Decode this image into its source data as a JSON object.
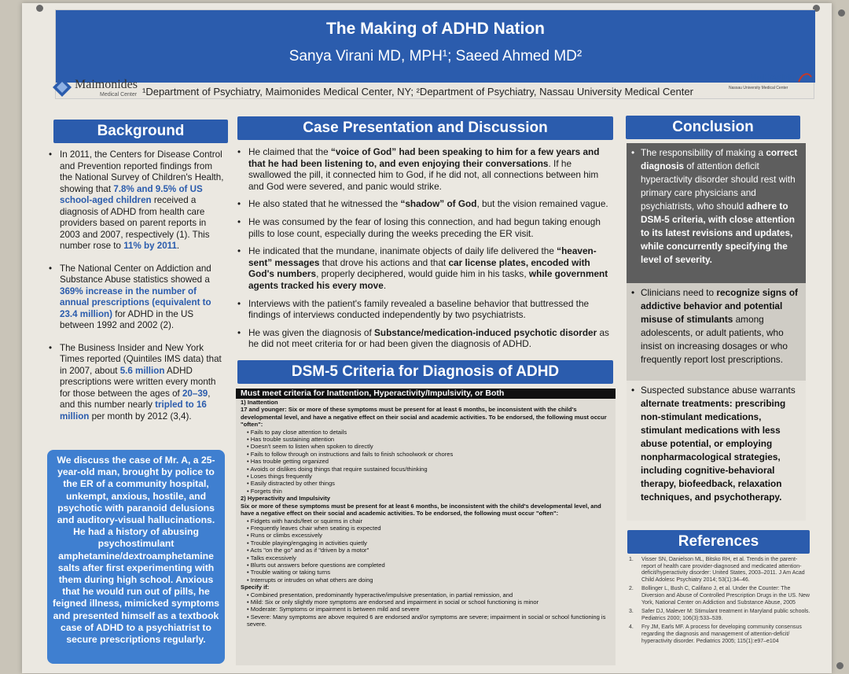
{
  "poster": {
    "title": "The Making of ADHD Nation",
    "authors": "Sanya Virani MD, MPH¹; Saeed Ahmed MD²",
    "departments": "¹Department of Psychiatry, Maimonides Medical Center, NY; ²Department of Psychiatry, Nassau University Medical Center",
    "logo_left": "Maimonides",
    "logo_left_sub": "Medical Center",
    "logo_right": "NuHealth",
    "logo_right_sub": "Nassau University Medical Center"
  },
  "background": {
    "heading": "Background",
    "p1_a": "In 2011, the Centers for Disease Control and Prevention reported findings from the National Survey of Children's Health, showing that ",
    "p1_b": "7.8% and 9.5% of US school-aged children",
    "p1_c": " received a diagnosis of ADHD from health care providers based on parent reports in 2003 and 2007, respectively (1). This number rose to ",
    "p1_d": "11% by 2011",
    "p1_e": ".",
    "p2_a": "The National Center on Addiction and Substance Abuse statistics showed a ",
    "p2_b": "369% increase in the number of annual prescriptions (equivalent to 23.4 million)",
    "p2_c": " for ADHD in the US between 1992 and 2002 (2).",
    "p3_a": "The Business Insider and New York Times reported (Quintiles IMS data) that in 2007, about ",
    "p3_b": "5.6 million",
    "p3_c": " ADHD prescriptions were written every month for those between the ages of ",
    "p3_d": "20–39",
    "p3_e": ", and this number nearly ",
    "p3_f": "tripled to 16 million",
    "p3_g": " per month by 2012 (3,4)."
  },
  "case_box": "We discuss the case of Mr. A, a 25-year-old man, brought by police to the ER of a community hospital, unkempt, anxious, hostile, and psychotic with paranoid delusions and auditory-visual hallucinations. He had a history of abusing psychostimulant amphetamine/dextroamphetamine salts after first experimenting with them during high school. Anxious that he would run out of pills, he feigned illness, mimicked symptoms and presented himself as a textbook case of ADHD to a psychiatrist to secure prescriptions regularly.",
  "case_discussion": {
    "heading": "Case Presentation and Discussion",
    "b1_a": "He claimed that the ",
    "b1_b": "“voice of God” had been speaking to him for a few years and that he had been listening to, and even enjoying their conversations",
    "b1_c": ". If he swallowed the pill, it connected him to God, if he did not, all connections between him and God were severed, and panic would strike.",
    "b2_a": "He also stated that he witnessed the ",
    "b2_b": "“shadow” of God",
    "b2_c": ", but the vision remained vague.",
    "b3": "He was consumed by the fear of losing this connection, and had begun taking enough pills to lose count, especially during the weeks preceding the ER visit.",
    "b4_a": "He indicated that the mundane, inanimate objects of daily life delivered the ",
    "b4_b": "“heaven-sent” messages",
    "b4_c": " that drove his actions and that ",
    "b4_d": "car license plates, encoded with God's numbers",
    "b4_e": ", properly deciphered, would guide him in his tasks, ",
    "b4_f": "while government agents tracked his every move",
    "b4_g": ".",
    "b5": "Interviews with the patient's family revealed a baseline behavior that buttressed the findings of interviews conducted independently by two psychiatrists.",
    "b6_a": "He was given the diagnosis of ",
    "b6_b": "Substance/medication-induced psychotic disorder",
    "b6_c": " as he did not meet criteria for or had been given the diagnosis of ADHD."
  },
  "dsm": {
    "heading": "DSM-5 Criteria for Diagnosis of ADHD",
    "bar": "Must meet criteria for Inattention, Hyperactivity/Impulsivity, or Both",
    "inatt_h": "1)   Inattention",
    "inatt_p": "17 and younger: Six or more of these symptoms must be present for at least 6 months, be inconsistent with the child's developmental level, and have a negative effect on their social and academic activities. To be endorsed, the following must occur \"often\":",
    "inatt_items": [
      "Fails to pay close attention to details",
      "Has trouble sustaining attention",
      "Doesn't seem to listen when spoken to directly",
      "Fails to follow through on instructions and fails to finish schoolwork or chores",
      "Has trouble getting organized",
      "Avoids or dislikes doing things that require sustained focus/thinking",
      "Loses things frequently",
      "Easily distracted by other things",
      "Forgets thin"
    ],
    "hyper_h": "2)   Hyperactivity and Impulsivity",
    "hyper_p": "Six or more of these symptoms must be present for at least 6 months, be inconsistent with the child's developmental level, and have a negative effect on their social and academic activities. To be endorsed, the following must occur \"often\":",
    "hyper_items": [
      "Fidgets with hands/feet or squirms in chair",
      "Frequently leaves chair when seating is expected",
      "Runs or climbs excessively",
      "Trouble playing/engaging in activities quietly",
      "Acts \"on the go\" and as if \"driven by a motor\"",
      "Talks excessively",
      "Blurts out answers before questions are completed",
      "Trouble waiting or taking turns",
      "Interrupts or intrudes on what others are doing"
    ],
    "spec_h": "Specify if:",
    "spec_items": [
      "Combined presentation, predominantly hyperactive/impulsive presentation, in partial remission, and",
      "Mild: Six or only slightly more symptoms are endorsed and impairment in social or school functioning is minor",
      "Moderate: Symptoms or impairment is between mild and severe",
      "Severe: Many symptoms are above required 6 are endorsed and/or symptoms are severe; impairment in social or school functioning is severe."
    ]
  },
  "conclusion": {
    "heading": "Conclusion",
    "c1_a": "The responsibility of making a ",
    "c1_b": "correct diagnosis",
    "c1_c": " of attention deficit hyperactivity disorder should rest with primary care physicians and psychiatrists, who should ",
    "c1_d": "adhere to DSM-5 criteria, with close attention to its latest revisions and updates, while concurrently specifying the level of severity.",
    "c2_a": "Clinicians need to ",
    "c2_b": "recognize signs of addictive behavior and potential misuse of stimulants",
    "c2_c": " among adolescents, or adult patients, who insist on increasing dosages or who frequently report lost prescriptions.",
    "c3_a": "Suspected substance abuse warrants ",
    "c3_b": "alternate treatments: prescribing non-stimulant medications, stimulant medications with less abuse potential, or employing nonpharmacological strategies, including cognitive-behavioral therapy, biofeedback, relaxation techniques, and psychotherapy."
  },
  "references": {
    "heading": "References",
    "items": [
      "Visser SN, Danielson ML, Bitsko RH, et al. Trends in the parent-report of health care provider-diagnosed and medicated attention-deficit/hyperactivity disorder: United States, 2003–2011. J Am Acad Child Adolesc Psychiatry 2014; 53(1):34–46.",
      "Bollinger L, Bush C, Califano J, et al. Under the Counter: The Diversion and Abuse of Controlled Prescription Drugs in the US. New York, National Center on Addiction and Substance Abuse, 2005",
      "Safer DJ, Malever M: Stimulant treatment in Maryland public schools. Pediatrics 2000; 106(3):533–539.",
      "Fry JM, Earls MF. A process for developing community consensus regarding the diagnosis and management of attention-deficit/ hyperactivity disorder. Pediatrics 2005; 115(1):e97–e104"
    ]
  }
}
